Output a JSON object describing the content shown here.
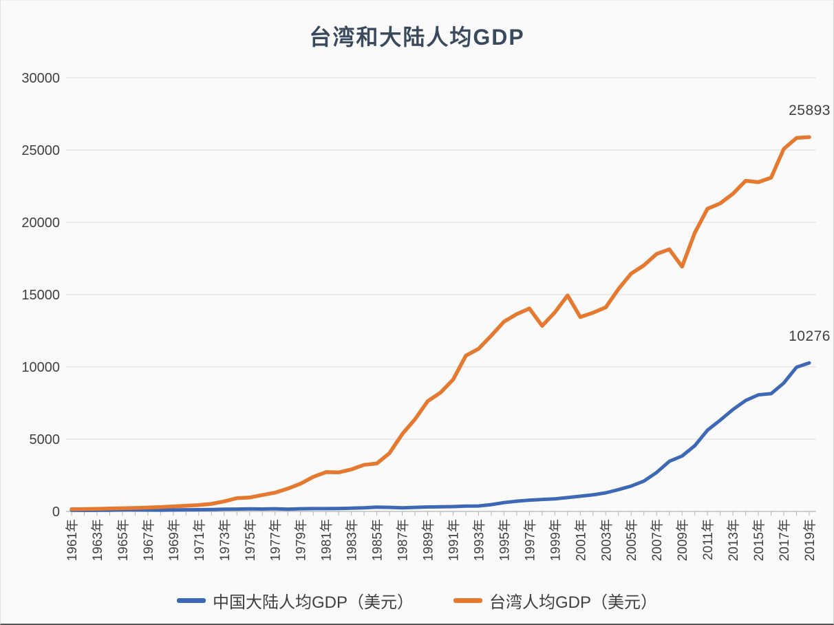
{
  "title": "台湾和大陆人均GDP",
  "chart_data": {
    "type": "line",
    "title": "台湾和大陆人均GDP",
    "xlabel": "",
    "ylabel": "",
    "ylim": [
      0,
      30000
    ],
    "yticks": [
      0,
      5000,
      10000,
      15000,
      20000,
      25000,
      30000
    ],
    "grid": "horizontal",
    "legend_position": "bottom",
    "x_start_year": 1961,
    "x_end_year": 2019,
    "x_tick_labels": [
      "1961年",
      "1963年",
      "1965年",
      "1967年",
      "1969年",
      "1971年",
      "1973年",
      "1975年",
      "1977年",
      "1979年",
      "1981年",
      "1983年",
      "1985年",
      "1987年",
      "1989年",
      "1991年",
      "1993年",
      "1995年",
      "1997年",
      "1999年",
      "2001年",
      "2003年",
      "2005年",
      "2007年",
      "2009年",
      "2011年",
      "2013年",
      "2015年",
      "2017年",
      "2019年"
    ],
    "colors": {
      "china_line": "#3c68b6",
      "taiwan_line": "#e4792f",
      "gridline": "#d9d9d9",
      "axis": "#b3b3b3",
      "title_text": "#3a4a5e",
      "label_text": "#404040"
    },
    "series": [
      {
        "name": "中国大陆人均GDP（美元）",
        "color": "#3c68b6",
        "end_label": "10276",
        "values": [
          76,
          71,
          74,
          85,
          98,
          104,
          97,
          91,
          100,
          113,
          118,
          131,
          157,
          160,
          178,
          165,
          185,
          156,
          184,
          195,
          197,
          203,
          225,
          250,
          294,
          282,
          251,
          283,
          310,
          317,
          333,
          366,
          377,
          473,
          609,
          709,
          781,
          828,
          873,
          959,
          1053,
          1148,
          1288,
          1508,
          1753,
          2099,
          2693,
          3468,
          3832,
          4550,
          5618,
          6316,
          7050,
          7678,
          8066,
          8147,
          8879,
          9976,
          10276
        ]
      },
      {
        "name": "台湾人均GDP（美元）",
        "color": "#e4792f",
        "end_label": "25893",
        "values": [
          153,
          162,
          178,
          202,
          217,
          237,
          267,
          304,
          345,
          389,
          443,
          522,
          695,
          920,
          964,
          1132,
          1301,
          1577,
          1920,
          2389,
          2720,
          2699,
          2903,
          3224,
          3314,
          4036,
          5350,
          6370,
          7626,
          8216,
          9125,
          10778,
          11250,
          12160,
          13129,
          13650,
          14040,
          12840,
          13768,
          14941,
          13448,
          13750,
          14120,
          15388,
          16456,
          17026,
          17814,
          18131,
          16933,
          19278,
          20939,
          21308,
          21973,
          22874,
          22780,
          23091,
          25080,
          25838,
          25893
        ]
      }
    ]
  }
}
